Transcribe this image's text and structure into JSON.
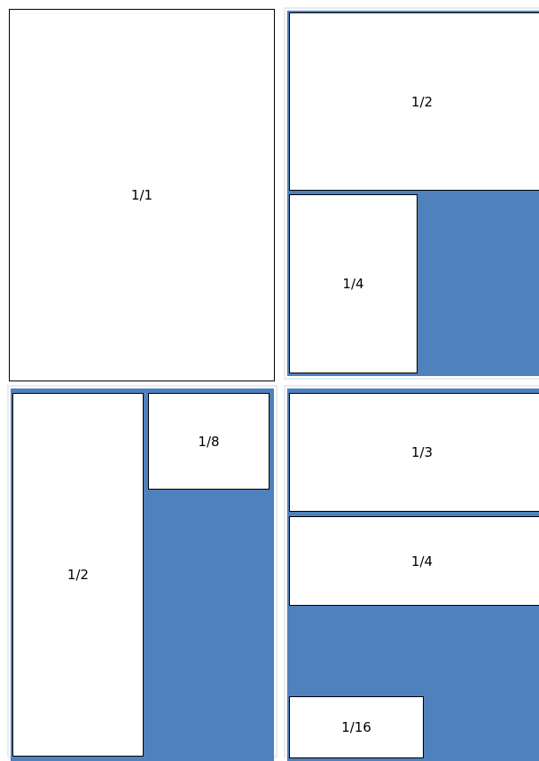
{
  "panels": {
    "panel_1": {
      "boxes": [
        {
          "label": "1/1"
        }
      ]
    },
    "panel_2": {
      "boxes": [
        {
          "label": "1/2"
        },
        {
          "label": "1/4"
        }
      ]
    },
    "panel_3": {
      "boxes": [
        {
          "label": "1/2"
        },
        {
          "label": "1/8"
        }
      ]
    },
    "panel_4": {
      "boxes": [
        {
          "label": "1/3"
        },
        {
          "label": "1/4"
        },
        {
          "label": "1/16"
        }
      ]
    }
  },
  "colors": {
    "fill": "#4f81bd",
    "box": "#ffffff",
    "border": "#000000"
  }
}
